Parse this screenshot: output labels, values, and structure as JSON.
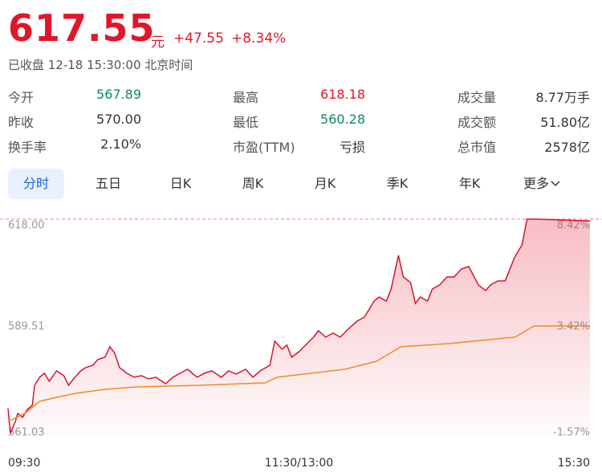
{
  "header": {
    "price": "617.55",
    "unit": "元",
    "change": "+47.55",
    "change_pct": "+8.34%",
    "status": "已收盘 12-18 15:30:00 北京时间"
  },
  "stats": [
    {
      "label": "今开",
      "value": "567.89"
    },
    {
      "label": "最高",
      "value": "618.18"
    },
    {
      "label": "成交量",
      "value": "8.77万手"
    },
    {
      "label": "昨收",
      "value": "570.00"
    },
    {
      "label": "最低",
      "value": "560.28"
    },
    {
      "label": "成交额",
      "value": "51.80亿"
    },
    {
      "label": "换手率",
      "value": "2.10%"
    },
    {
      "label": "市盈(TTM)",
      "value": "亏损"
    },
    {
      "label": "总市值",
      "value": "2578亿"
    }
  ],
  "tabs": [
    "分时",
    "五日",
    "日K",
    "周K",
    "月K",
    "季K",
    "年K",
    "更多"
  ],
  "chart_data": {
    "type": "line",
    "xlim": [
      0,
      240
    ],
    "xticks": [
      {
        "value": 0,
        "label": "09:30"
      },
      {
        "value": 120,
        "label": "11:30/13:00"
      },
      {
        "value": 240,
        "label": "15:30"
      }
    ],
    "ylim": [
      561.03,
      618
    ],
    "yticks": [
      {
        "value": 618,
        "label": "618.00"
      },
      589.51,
      561.03
    ],
    "y2lim": [
      -1.57,
      8.42
    ],
    "y2ticks": [
      {
        "value": 8.42,
        "label": "8.42%"
      },
      {
        "value": 3.42,
        "label": "3.42%"
      },
      {
        "value": -1.57,
        "label": "-1.57%"
      }
    ],
    "series": [
      {
        "color": "#d9142a",
        "x": [
          0,
          1,
          3,
          4,
          6,
          8,
          10,
          11,
          13,
          15,
          17,
          20,
          23,
          25,
          27,
          30,
          32,
          35,
          37,
          40,
          42,
          44,
          46,
          49,
          52,
          55,
          58,
          61,
          65,
          68,
          71,
          74,
          78,
          81,
          84,
          88,
          91,
          94,
          98,
          101,
          104,
          108,
          110,
          113,
          115,
          117,
          120,
          122,
          126,
          128,
          131,
          134,
          137,
          141,
          144,
          147,
          149,
          151,
          153,
          156,
          158,
          161,
          163,
          166,
          168,
          170,
          173,
          175,
          178,
          181,
          184,
          187,
          190,
          194,
          197,
          199,
          202,
          205,
          209,
          212,
          214,
          218,
          240
        ],
        "values": [
          567.89,
          561.24,
          564.42,
          566.55,
          565.49,
          567.61,
          568.68,
          573.99,
          576.12,
          577.18,
          575.05,
          577.82,
          576.54,
          573.99,
          575.69,
          577.82,
          578.67,
          579.31,
          580.79,
          581.43,
          584.2,
          582.5,
          578.67,
          577.18,
          576.12,
          576.54,
          575.69,
          576.12,
          574.42,
          576.12,
          577.18,
          578.24,
          576.12,
          577.18,
          577.82,
          576.12,
          577.82,
          576.97,
          578.24,
          576.12,
          577.82,
          579.31,
          585.68,
          583.56,
          584.62,
          581.43,
          582.92,
          584.2,
          586.75,
          588.45,
          586.75,
          587.81,
          586.75,
          589.3,
          591,
          592.06,
          594.19,
          596.31,
          597.38,
          596.31,
          599.5,
          608.43,
          602.69,
          601.2,
          595.68,
          597.38,
          596.31,
          599.5,
          600.57,
          602.69,
          602.69,
          604.82,
          605.46,
          600.57,
          599.08,
          600.57,
          601.63,
          601.63,
          608.01,
          611.2,
          618,
          618,
          617.55
        ]
      },
      {
        "color": "#f08a24",
        "x": [
          0,
          7,
          13,
          20,
          28,
          40,
          53,
          79,
          106,
          111,
          139,
          152,
          162,
          182,
          209,
          217,
          240
        ],
        "values": [
          564.42,
          566.55,
          569.74,
          570.8,
          571.87,
          572.93,
          573.57,
          573.99,
          574.63,
          576.12,
          578.24,
          580.37,
          584.2,
          585.05,
          586.75,
          589.72,
          589.72
        ]
      }
    ]
  }
}
